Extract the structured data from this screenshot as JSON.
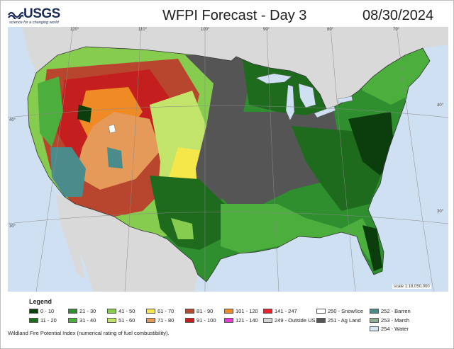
{
  "header": {
    "logo_text": "USGS",
    "logo_tagline": "science for a changing world",
    "title": "WFPI Forecast - Day 3",
    "date": "08/30/2024"
  },
  "map": {
    "longitude_labels": [
      "120°",
      "110°",
      "100°",
      "90°",
      "80°",
      "70°"
    ],
    "latitude_labels_left": [
      "40°",
      "30°"
    ],
    "latitude_labels_right": [
      "40°",
      "30°"
    ],
    "scale_note": "scale 1:18,050,000",
    "colors": {
      "water": "#cfe0f2",
      "land_outside": "#d9d9d9",
      "snow_ice": "#ffffff"
    }
  },
  "legend": {
    "title": "Legend",
    "items": [
      {
        "label": "0 - 10",
        "color": "#0c3d0c"
      },
      {
        "label": "11 - 20",
        "color": "#1e6b1e"
      },
      {
        "label": "21 - 30",
        "color": "#2f8f2f"
      },
      {
        "label": "31 - 40",
        "color": "#4cae3c"
      },
      {
        "label": "41 - 50",
        "color": "#86cc4e"
      },
      {
        "label": "51 - 60",
        "color": "#c2e46a"
      },
      {
        "label": "61 - 70",
        "color": "#f5e74a"
      },
      {
        "label": "71 - 80",
        "color": "#e59a5a"
      },
      {
        "label": "81 - 90",
        "color": "#b8452e"
      },
      {
        "label": "91 - 100",
        "color": "#c41e1e"
      },
      {
        "label": "101 - 120",
        "color": "#f08a24"
      },
      {
        "label": "121 - 140",
        "color": "#e83ad8"
      },
      {
        "label": "141 - 247",
        "color": "#e8222a"
      },
      {
        "label": "249 - Outside US",
        "color": "#d4d4d4"
      },
      {
        "label": "250 - Snow/Ice",
        "color": "#ffffff"
      },
      {
        "label": "251 - Ag Land",
        "color": "#555555"
      },
      {
        "label": "252 - Barren",
        "color": "#4a8c8c"
      },
      {
        "label": "253 - Marsh",
        "color": "#8fae95"
      },
      {
        "label": "254 - Water",
        "color": "#d6e6f5"
      }
    ]
  },
  "footnote": "Wildland Fire Potential Index (numerical rating of fuel combustibility)."
}
